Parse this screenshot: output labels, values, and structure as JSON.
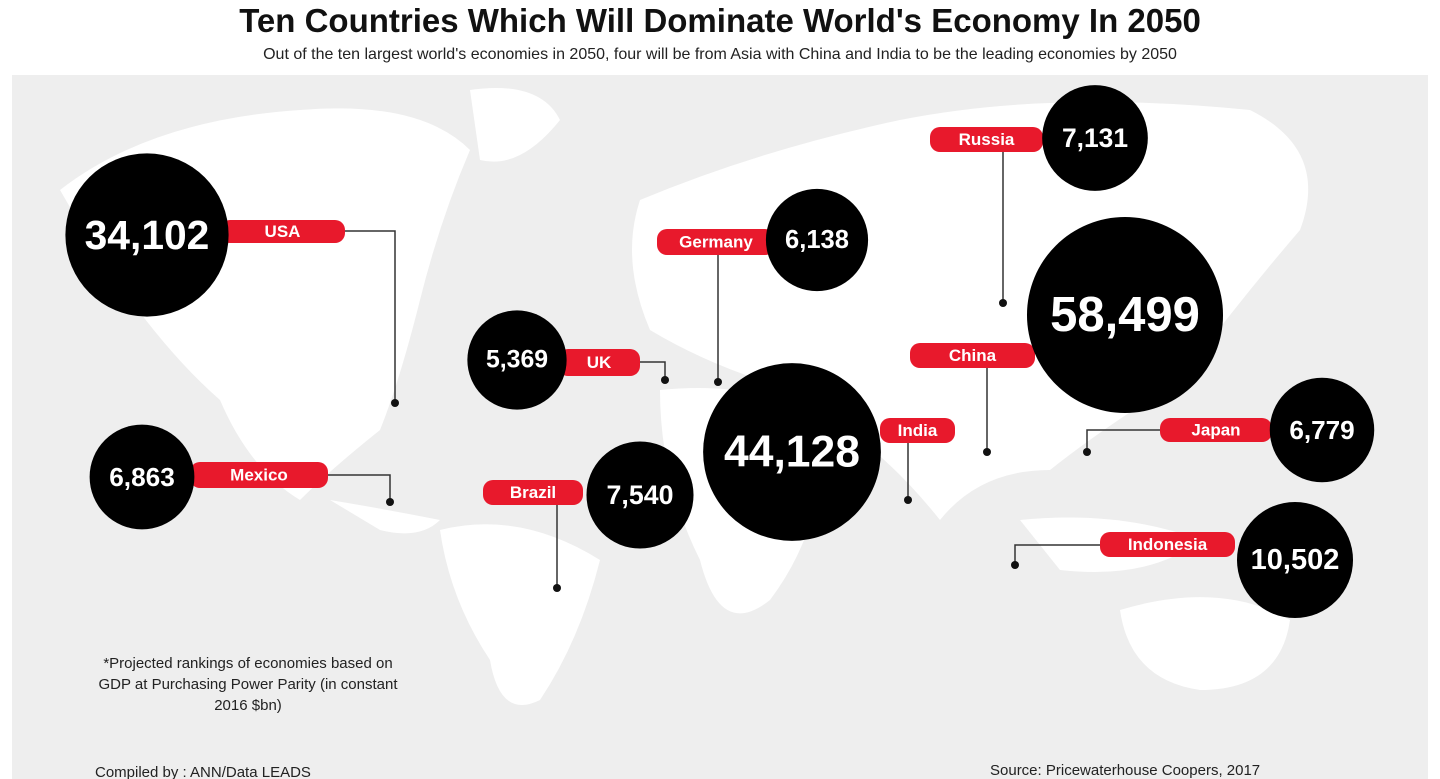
{
  "chart_data": {
    "type": "bubble",
    "title": "Ten Countries Which Will Dominate World's Economy In 2050",
    "subtitle": "Out of the ten largest world's economies in 2050, four will be from Asia with China and India to be the leading economies by 2050",
    "categories": [
      "USA",
      "Mexico",
      "UK",
      "Germany",
      "Brazil",
      "India",
      "Russia",
      "China",
      "Japan",
      "Indonesia"
    ],
    "values": [
      34102,
      6863,
      5369,
      6138,
      7540,
      44128,
      7131,
      58499,
      6779,
      10502
    ],
    "value_labels": [
      "34,102",
      "6,863",
      "5,369",
      "6,138",
      "7,540",
      "44,128",
      "7,131",
      "58,499",
      "6,779",
      "10,502"
    ],
    "color": "#000000",
    "label_color": "#e8192c",
    "note": "*Projected rankings of economies based on GDP at Purchasing Power Parity (in constant 2016 $bn)",
    "compiled_by": "Compiled by : ANN/Data LEADS",
    "source": "Source:  Pricewaterhouse Coopers, 2017"
  }
}
